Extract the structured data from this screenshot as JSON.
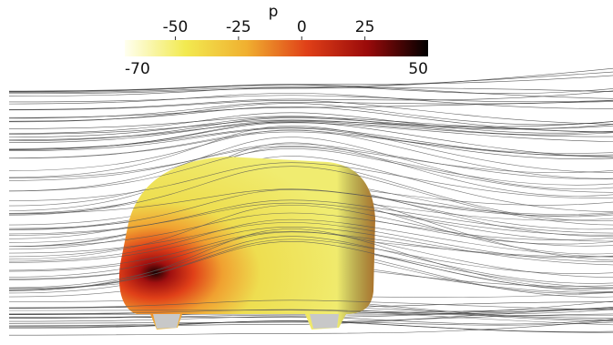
{
  "colorbar": {
    "label": "p",
    "range": [
      -70,
      50
    ],
    "ticks": [
      -50,
      -25,
      0,
      25
    ],
    "colors": [
      "#fffff0",
      "#f2ea50",
      "#f0b030",
      "#e04018",
      "#9a0a0a",
      "#000000"
    ]
  }
}
